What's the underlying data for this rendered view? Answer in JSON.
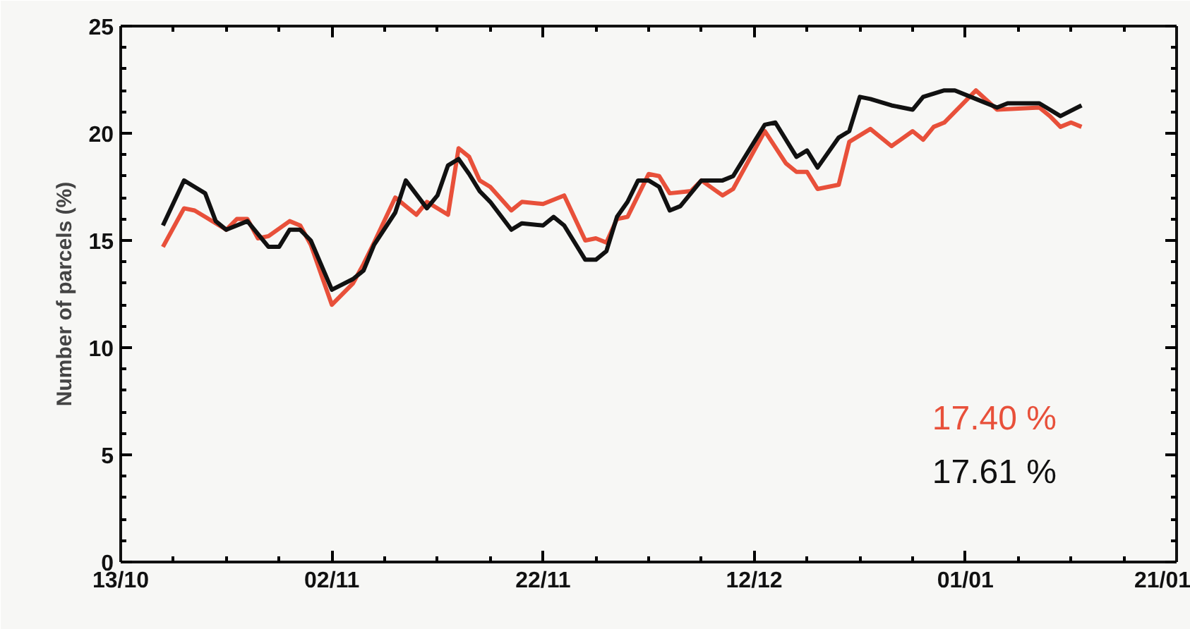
{
  "chart_data": {
    "type": "line",
    "ylabel": "Number of parcels (%)",
    "xlim": [
      "2000-10-13",
      "2001-01-21"
    ],
    "ylim": [
      0,
      25
    ],
    "xticks": [
      {
        "value": "2000-10-13",
        "label": "13/10"
      },
      {
        "value": "2000-11-02",
        "label": "02/11"
      },
      {
        "value": "2000-11-22",
        "label": "22/11"
      },
      {
        "value": "2000-12-12",
        "label": "12/12"
      },
      {
        "value": "2001-01-01",
        "label": "01/01"
      },
      {
        "value": "2001-01-21",
        "label": "21/01"
      }
    ],
    "yticks": [
      0,
      5,
      10,
      15,
      20,
      25
    ],
    "grid": false,
    "line_style": "solid",
    "marker": "none",
    "series": [
      {
        "color": "#e8503a",
        "x": [
          "2000-10-17",
          "2000-10-19",
          "2000-10-20",
          "2000-10-21",
          "2000-10-23",
          "2000-10-24",
          "2000-10-25",
          "2000-10-26",
          "2000-10-27",
          "2000-10-29",
          "2000-10-30",
          "2000-10-31",
          "2000-11-02",
          "2000-11-04",
          "2000-11-05",
          "2000-11-06",
          "2000-11-08",
          "2000-11-10",
          "2000-11-11",
          "2000-11-13",
          "2000-11-14",
          "2000-11-15",
          "2000-11-16",
          "2000-11-17",
          "2000-11-19",
          "2000-11-20",
          "2000-11-22",
          "2000-11-24",
          "2000-11-26",
          "2000-11-27",
          "2000-11-28",
          "2000-11-29",
          "2000-11-30",
          "2000-12-02",
          "2000-12-03",
          "2000-12-04",
          "2000-12-06",
          "2000-12-07",
          "2000-12-09",
          "2000-12-10",
          "2000-12-13",
          "2000-12-15",
          "2000-12-16",
          "2000-12-17",
          "2000-12-18",
          "2000-12-20",
          "2000-12-21",
          "2000-12-23",
          "2000-12-25",
          "2000-12-27",
          "2000-12-28",
          "2000-12-29",
          "2000-12-30",
          "2001-01-02",
          "2001-01-04",
          "2001-01-08",
          "2001-01-09",
          "2001-01-10",
          "2001-01-11",
          "2001-01-12"
        ],
        "values": [
          14.7,
          16.5,
          16.4,
          16.1,
          15.5,
          16.0,
          16.0,
          15.1,
          15.2,
          15.9,
          15.7,
          14.8,
          12.0,
          13.0,
          13.9,
          14.9,
          17.0,
          16.2,
          16.8,
          16.2,
          19.3,
          18.9,
          17.8,
          17.5,
          16.4,
          16.8,
          16.7,
          17.1,
          15.0,
          15.1,
          14.9,
          16.0,
          16.1,
          18.1,
          18.0,
          17.2,
          17.3,
          17.8,
          17.1,
          17.4,
          20.1,
          18.6,
          18.2,
          18.2,
          17.4,
          17.6,
          19.6,
          20.2,
          19.4,
          20.1,
          19.7,
          20.3,
          20.5,
          22.0,
          21.1,
          21.2,
          20.8,
          20.3,
          20.5,
          20.3
        ]
      },
      {
        "color": "#111111",
        "x": [
          "2000-10-17",
          "2000-10-19",
          "2000-10-20",
          "2000-10-21",
          "2000-10-22",
          "2000-10-23",
          "2000-10-25",
          "2000-10-27",
          "2000-10-28",
          "2000-10-29",
          "2000-10-30",
          "2000-10-31",
          "2000-11-02",
          "2000-11-04",
          "2000-11-05",
          "2000-11-06",
          "2000-11-08",
          "2000-11-09",
          "2000-11-11",
          "2000-11-12",
          "2000-11-13",
          "2000-11-14",
          "2000-11-15",
          "2000-11-16",
          "2000-11-17",
          "2000-11-19",
          "2000-11-20",
          "2000-11-22",
          "2000-11-23",
          "2000-11-24",
          "2000-11-26",
          "2000-11-27",
          "2000-11-28",
          "2000-11-29",
          "2000-11-30",
          "2000-12-01",
          "2000-12-02",
          "2000-12-03",
          "2000-12-04",
          "2000-12-05",
          "2000-12-07",
          "2000-12-09",
          "2000-12-10",
          "2000-12-12",
          "2000-12-13",
          "2000-12-14",
          "2000-12-16",
          "2000-12-17",
          "2000-12-18",
          "2000-12-20",
          "2000-12-21",
          "2000-12-22",
          "2000-12-23",
          "2000-12-25",
          "2000-12-27",
          "2000-12-28",
          "2000-12-30",
          "2000-12-31",
          "2001-01-02",
          "2001-01-04",
          "2001-01-05",
          "2001-01-08",
          "2001-01-09",
          "2001-01-10",
          "2001-01-12"
        ],
        "values": [
          15.7,
          17.8,
          17.5,
          17.2,
          15.9,
          15.5,
          15.9,
          14.7,
          14.7,
          15.5,
          15.5,
          15.0,
          12.7,
          13.2,
          13.6,
          14.8,
          16.3,
          17.8,
          16.5,
          17.1,
          18.5,
          18.8,
          18.1,
          17.3,
          16.8,
          15.5,
          15.8,
          15.7,
          16.1,
          15.7,
          14.1,
          14.1,
          14.5,
          16.1,
          16.8,
          17.8,
          17.8,
          17.5,
          16.4,
          16.6,
          17.8,
          17.8,
          18.0,
          19.6,
          20.4,
          20.5,
          18.9,
          19.2,
          18.4,
          19.8,
          20.1,
          21.7,
          21.6,
          21.3,
          21.1,
          21.7,
          22.0,
          22.0,
          21.6,
          21.2,
          21.4,
          21.4,
          21.1,
          20.8,
          21.3
        ]
      }
    ],
    "annotations": [
      "17.40 %",
      "17.61 %"
    ]
  }
}
